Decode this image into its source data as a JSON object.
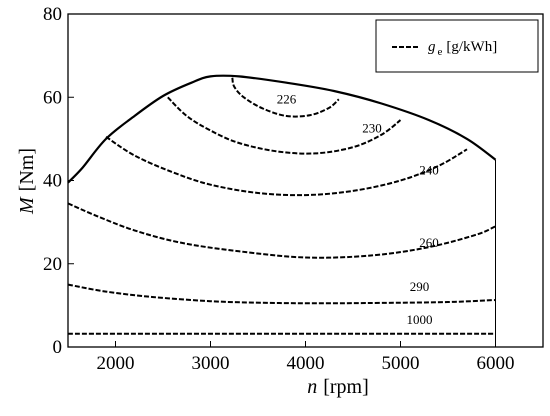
{
  "chart_data": {
    "type": "line",
    "title": "",
    "xlabel": {
      "symbol": "n",
      "unit": "[rpm]"
    },
    "ylabel": {
      "symbol": "M",
      "unit": "[Nm]"
    },
    "xlim": [
      1500,
      6500
    ],
    "ylim": [
      0,
      80
    ],
    "xticks": [
      2000,
      3000,
      4000,
      5000,
      6000
    ],
    "yticks": [
      0,
      20,
      40,
      60,
      80
    ],
    "grid": false,
    "legend": {
      "position": "top-right",
      "symbol": "g",
      "subscript": "e",
      "unit": "[g/kWh]"
    },
    "boundary": {
      "style": "solid",
      "points": [
        [
          1500,
          39.5
        ],
        [
          1650,
          43
        ],
        [
          1900,
          50
        ],
        [
          2200,
          55.5
        ],
        [
          2500,
          60.3
        ],
        [
          2800,
          63.5
        ],
        [
          3000,
          65
        ],
        [
          3300,
          65
        ],
        [
          3800,
          63.5
        ],
        [
          4300,
          61.5
        ],
        [
          4800,
          58.5
        ],
        [
          5300,
          54.5
        ],
        [
          5700,
          50
        ],
        [
          6000,
          45
        ]
      ]
    },
    "series": [
      {
        "name": "226",
        "style": "dashed",
        "points": [
          [
            3230,
            64.7
          ],
          [
            3250,
            62.5
          ],
          [
            3350,
            60
          ],
          [
            3550,
            57.3
          ],
          [
            3800,
            55.5
          ],
          [
            4050,
            55.7
          ],
          [
            4250,
            57.5
          ],
          [
            4350,
            59.5
          ]
        ]
      },
      {
        "name": "230",
        "style": "dashed",
        "points": [
          [
            2550,
            60
          ],
          [
            2750,
            55.5
          ],
          [
            3000,
            52
          ],
          [
            3300,
            49
          ],
          [
            3700,
            47
          ],
          [
            4100,
            46.5
          ],
          [
            4500,
            48
          ],
          [
            4800,
            51
          ],
          [
            5000,
            54.5
          ]
        ]
      },
      {
        "name": "240",
        "style": "dashed",
        "points": [
          [
            1900,
            50.5
          ],
          [
            2200,
            46
          ],
          [
            2600,
            42
          ],
          [
            3000,
            39
          ],
          [
            3500,
            37
          ],
          [
            4000,
            36.5
          ],
          [
            4500,
            37.5
          ],
          [
            5000,
            40
          ],
          [
            5400,
            43.5
          ],
          [
            5700,
            47.5
          ]
        ]
      },
      {
        "name": "260",
        "style": "dashed",
        "points": [
          [
            1500,
            34.5
          ],
          [
            1800,
            31.5
          ],
          [
            2200,
            28
          ],
          [
            2700,
            25
          ],
          [
            3300,
            23
          ],
          [
            4000,
            21.5
          ],
          [
            4700,
            22
          ],
          [
            5300,
            24
          ],
          [
            5800,
            27
          ],
          [
            6000,
            29
          ]
        ]
      },
      {
        "name": "290",
        "style": "dashed",
        "points": [
          [
            1500,
            15
          ],
          [
            1900,
            13.3
          ],
          [
            2400,
            12
          ],
          [
            3000,
            11
          ],
          [
            3600,
            10.6
          ],
          [
            4200,
            10.5
          ],
          [
            4800,
            10.6
          ],
          [
            5500,
            10.8
          ],
          [
            6000,
            11.3
          ]
        ]
      },
      {
        "name": "1000",
        "style": "dashed",
        "points": [
          [
            1500,
            3.2
          ],
          [
            6000,
            3.2
          ]
        ]
      }
    ],
    "contour_labels": [
      {
        "text": "226",
        "x": 3800,
        "y": 58.5
      },
      {
        "text": "230",
        "x": 4700,
        "y": 51.5
      },
      {
        "text": "240",
        "x": 5300,
        "y": 41.5
      },
      {
        "text": "260",
        "x": 5300,
        "y": 24
      },
      {
        "text": "290",
        "x": 5200,
        "y": 13.5
      },
      {
        "text": "1000",
        "x": 5200,
        "y": 5.5
      }
    ]
  }
}
